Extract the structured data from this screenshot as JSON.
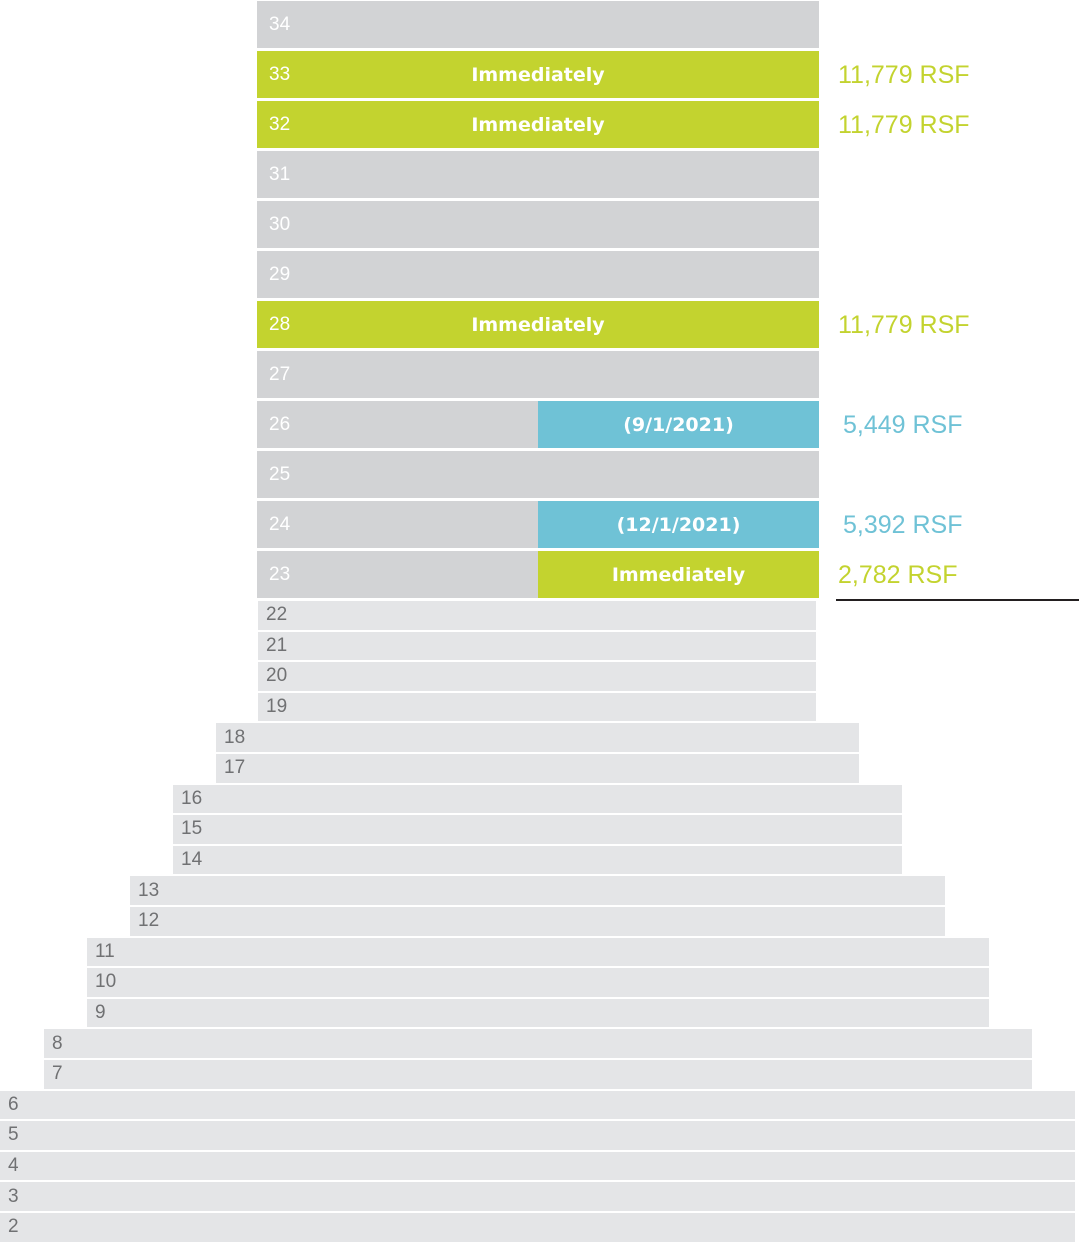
{
  "colors": {
    "available_immediate": "#c3d32f",
    "available_future": "#6fc2d6",
    "leased_upper": "#d2d3d5",
    "leased_lower": "#e4e5e7",
    "lower_label": "#707173"
  },
  "upper_floors": [
    {
      "floor": "34",
      "status": "",
      "rsf": ""
    },
    {
      "floor": "33",
      "status": "Immediately",
      "rsf": "11,779 RSF",
      "kind": "full"
    },
    {
      "floor": "32",
      "status": "Immediately",
      "rsf": "11,779 RSF",
      "kind": "full"
    },
    {
      "floor": "31",
      "status": "",
      "rsf": ""
    },
    {
      "floor": "30",
      "status": "",
      "rsf": ""
    },
    {
      "floor": "29",
      "status": "",
      "rsf": ""
    },
    {
      "floor": "28",
      "status": "Immediately",
      "rsf": "11,779 RSF",
      "kind": "full"
    },
    {
      "floor": "27",
      "status": "",
      "rsf": ""
    },
    {
      "floor": "26",
      "status": "(9/1/2021)",
      "rsf": "5,449 RSF",
      "kind": "partial-blue"
    },
    {
      "floor": "25",
      "status": "",
      "rsf": ""
    },
    {
      "floor": "24",
      "status": "(12/1/2021)",
      "rsf": "5,392 RSF",
      "kind": "partial-blue"
    },
    {
      "floor": "23",
      "status": "Immediately",
      "rsf": "2,782 RSF",
      "kind": "partial-green"
    }
  ],
  "lower_floors": [
    "22",
    "21",
    "20",
    "19",
    "18",
    "17",
    "16",
    "15",
    "14",
    "13",
    "12",
    "11",
    "10",
    "9",
    "8",
    "7",
    "6",
    "5",
    "4",
    "3",
    "2"
  ]
}
